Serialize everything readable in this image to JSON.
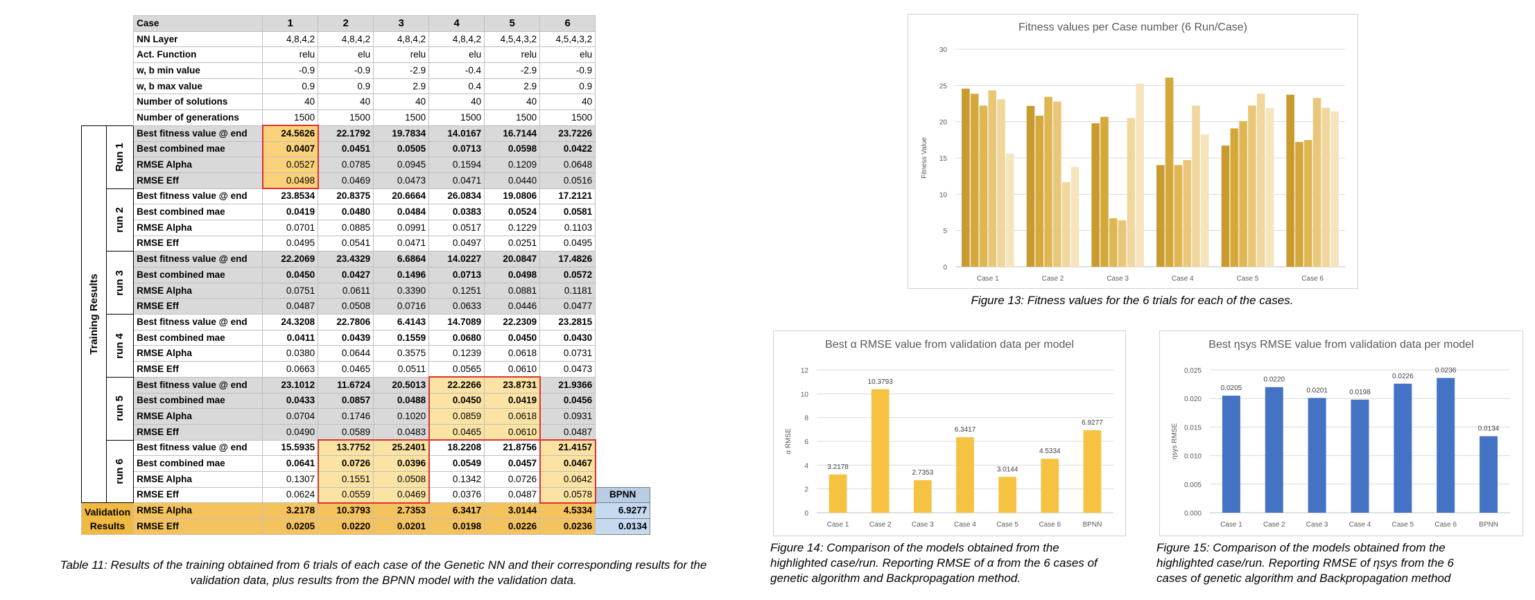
{
  "table": {
    "header_case_label": "Case",
    "cases": [
      "1",
      "2",
      "3",
      "4",
      "5",
      "6"
    ],
    "config_rows": [
      {
        "label": "NN Layer",
        "values": [
          "4,8,4,2",
          "4,8,4,2",
          "4,8,4,2",
          "4,8,4,2",
          "4,5,4,3,2",
          "4,5,4,3,2"
        ]
      },
      {
        "label": "Act. Function",
        "values": [
          "relu",
          "elu",
          "relu",
          "elu",
          "relu",
          "elu"
        ]
      },
      {
        "label": "w, b min value",
        "values": [
          "-0.9",
          "-0.9",
          "-2.9",
          "-0.4",
          "-2.9",
          "-0.9"
        ]
      },
      {
        "label": "w, b max value",
        "values": [
          "0.9",
          "0.9",
          "2.9",
          "0.4",
          "2.9",
          "0.9"
        ]
      },
      {
        "label": "Number of solutions",
        "values": [
          "40",
          "40",
          "40",
          "40",
          "40",
          "40"
        ]
      },
      {
        "label": "Number of generations",
        "values": [
          "1500",
          "1500",
          "1500",
          "1500",
          "1500",
          "1500"
        ]
      }
    ],
    "training_group_label": "Training Results",
    "metric_labels": [
      "Best fitness value @ end",
      "Best combined mae",
      "RMSE Alpha",
      "RMSE Eff"
    ],
    "runs": [
      {
        "label": "Run 1",
        "rows": [
          [
            "24.5626",
            "22.1792",
            "19.7834",
            "14.0167",
            "16.7144",
            "23.7226"
          ],
          [
            "0.0407",
            "0.0451",
            "0.0505",
            "0.0713",
            "0.0598",
            "0.0422"
          ],
          [
            "0.0527",
            "0.0785",
            "0.0945",
            "0.1594",
            "0.1209",
            "0.0648"
          ],
          [
            "0.0498",
            "0.0469",
            "0.0473",
            "0.0471",
            "0.0440",
            "0.0516"
          ]
        ]
      },
      {
        "label": "run 2",
        "rows": [
          [
            "23.8534",
            "20.8375",
            "20.6664",
            "26.0834",
            "19.0806",
            "17.2121"
          ],
          [
            "0.0419",
            "0.0480",
            "0.0484",
            "0.0383",
            "0.0524",
            "0.0581"
          ],
          [
            "0.0701",
            "0.0885",
            "0.0991",
            "0.0517",
            "0.1229",
            "0.1103"
          ],
          [
            "0.0495",
            "0.0541",
            "0.0471",
            "0.0497",
            "0.0251",
            "0.0495"
          ]
        ]
      },
      {
        "label": "run 3",
        "rows": [
          [
            "22.2069",
            "23.4329",
            "6.6864",
            "14.0227",
            "20.0847",
            "17.4826"
          ],
          [
            "0.0450",
            "0.0427",
            "0.1496",
            "0.0713",
            "0.0498",
            "0.0572"
          ],
          [
            "0.0751",
            "0.0611",
            "0.3390",
            "0.1251",
            "0.0881",
            "0.1181"
          ],
          [
            "0.0487",
            "0.0508",
            "0.0716",
            "0.0633",
            "0.0446",
            "0.0477"
          ]
        ]
      },
      {
        "label": "run 4",
        "rows": [
          [
            "24.3208",
            "22.7806",
            "6.4143",
            "14.7089",
            "22.2309",
            "23.2815"
          ],
          [
            "0.0411",
            "0.0439",
            "0.1559",
            "0.0680",
            "0.0450",
            "0.0430"
          ],
          [
            "0.0380",
            "0.0644",
            "0.3575",
            "0.1239",
            "0.0618",
            "0.0731"
          ],
          [
            "0.0663",
            "0.0465",
            "0.0511",
            "0.0565",
            "0.0610",
            "0.0473"
          ]
        ]
      },
      {
        "label": "run 5",
        "rows": [
          [
            "23.1012",
            "11.6724",
            "20.5013",
            "22.2266",
            "23.8731",
            "21.9366"
          ],
          [
            "0.0433",
            "0.0857",
            "0.0488",
            "0.0450",
            "0.0419",
            "0.0456"
          ],
          [
            "0.0704",
            "0.1746",
            "0.1020",
            "0.0859",
            "0.0618",
            "0.0931"
          ],
          [
            "0.0490",
            "0.0589",
            "0.0483",
            "0.0465",
            "0.0610",
            "0.0487"
          ]
        ]
      },
      {
        "label": "run 6",
        "rows": [
          [
            "15.5935",
            "13.7752",
            "25.2401",
            "18.2208",
            "21.8756",
            "21.4157"
          ],
          [
            "0.0641",
            "0.0726",
            "0.0396",
            "0.0549",
            "0.0457",
            "0.0467"
          ],
          [
            "0.1307",
            "0.1551",
            "0.0508",
            "0.1342",
            "0.0726",
            "0.0642"
          ],
          [
            "0.0624",
            "0.0559",
            "0.0469",
            "0.0376",
            "0.0487",
            "0.0578"
          ]
        ]
      }
    ],
    "bpnn_label": "BPNN",
    "validation_label_line1": "Validation",
    "validation_label_line2": "Results",
    "validation_rows": [
      {
        "label": "RMSE Alpha",
        "values": [
          "3.2178",
          "10.3793",
          "2.7353",
          "6.3417",
          "3.0144",
          "4.5334"
        ],
        "bpnn": "6.9277"
      },
      {
        "label": "RMSE Eff",
        "values": [
          "0.0205",
          "0.0220",
          "0.0201",
          "0.0198",
          "0.0226",
          "0.0236"
        ],
        "bpnn": "0.0134"
      }
    ]
  },
  "captions": {
    "table11_line1": "Table 11: Results of the training obtained from 6 trials of each case of the Genetic NN and their corresponding results for the",
    "table11_line2": "validation data, plus results from the BPNN model with the validation data.",
    "fig13": "Figure 13: Fitness values for the 6 trials for each of the cases.",
    "fig14_line1": "Figure 14: Comparison of the models obtained from the",
    "fig14_line2": "highlighted case/run. Reporting RMSE of α from the 6 cases of",
    "fig14_line3": "genetic algorithm and Backpropagation method.",
    "fig15_line1": "Figure 15: Comparison of the models obtained from the",
    "fig15_line2": "highlighted case/run. Reporting RMSE of ηsys from the 6",
    "fig15_line3": "cases of genetic algorithm and Backpropagation method"
  },
  "colors": {
    "gold_series": [
      "#c99a2e",
      "#d4a83a",
      "#deb752",
      "#e8c778",
      "#f0d79e",
      "#f6e4bd"
    ],
    "alpha_bar": "#f5c242",
    "eta_bar": "#4472c4",
    "grid": "#d9d9d9",
    "highlight_border": "#e03030"
  },
  "chart_data": [
    {
      "type": "bar",
      "title": "Fitness values per Case number (6 Run/Case)",
      "ylabel": "Fitness Value",
      "xlabel": "",
      "categories": [
        "Case 1",
        "Case 2",
        "Case 3",
        "Case 4",
        "Case 5",
        "Case 6"
      ],
      "ylim": [
        0,
        30
      ],
      "yticks": [
        "0",
        "5",
        "10",
        "15",
        "20",
        "25",
        "30"
      ],
      "grid": true,
      "legend": "none",
      "series": [
        {
          "values": [
            24.5626,
            22.1792,
            19.7834,
            14.0167,
            16.7144,
            23.7226
          ]
        },
        {
          "values": [
            23.8534,
            20.8375,
            20.6664,
            26.0834,
            19.0806,
            17.2121
          ]
        },
        {
          "values": [
            22.2069,
            23.4329,
            6.6864,
            14.0227,
            20.0847,
            17.4826
          ]
        },
        {
          "values": [
            24.3208,
            22.7806,
            6.4143,
            14.7089,
            22.2309,
            23.2815
          ]
        },
        {
          "values": [
            23.1012,
            11.6724,
            20.5013,
            22.2266,
            23.8731,
            21.9366
          ]
        },
        {
          "values": [
            15.5935,
            13.7752,
            25.2401,
            18.2208,
            21.8756,
            21.4157
          ]
        }
      ]
    },
    {
      "type": "bar",
      "title": "Best α RMSE value from validation data per model",
      "ylabel": "α RMSE",
      "xlabel": "",
      "categories": [
        "Case 1",
        "Case 2",
        "Case 3",
        "Case 4",
        "Case 5",
        "Case 6",
        "BPNN"
      ],
      "values": [
        3.2178,
        10.3793,
        2.7353,
        6.3417,
        3.0144,
        4.5334,
        6.9277
      ],
      "data_labels": [
        "3.2178",
        "10.3793",
        "2.7353",
        "6.3417",
        "3.0144",
        "4.5334",
        "6.9277"
      ],
      "ylim": [
        0,
        12
      ],
      "yticks": [
        "0",
        "2",
        "4",
        "6",
        "8",
        "10",
        "12"
      ],
      "grid": true,
      "legend": "none"
    },
    {
      "type": "bar",
      "title": "Best ηsys RMSE value from validation data per model",
      "ylabel": "ηsys RMSE",
      "xlabel": "",
      "categories": [
        "Case 1",
        "Case 2",
        "Case 3",
        "Case 4",
        "Case 5",
        "Case 6",
        "BPNN"
      ],
      "values": [
        0.0205,
        0.022,
        0.0201,
        0.0198,
        0.0226,
        0.0236,
        0.0134
      ],
      "data_labels": [
        "0.0205",
        "0.0220",
        "0.0201",
        "0.0198",
        "0.0226",
        "0.0236",
        "0.0134"
      ],
      "ylim": [
        0,
        0.025
      ],
      "yticks": [
        "0.000",
        "0.005",
        "0.010",
        "0.015",
        "0.020",
        "0.025"
      ],
      "grid": true,
      "legend": "none"
    }
  ]
}
